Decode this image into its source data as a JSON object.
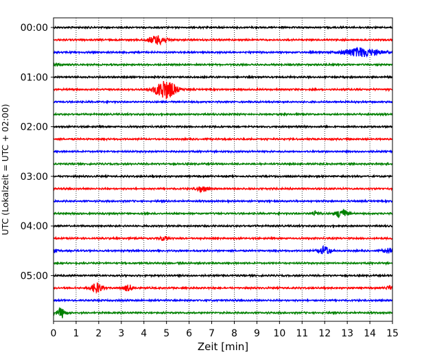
{
  "chart_data": {
    "type": "line",
    "xlabel": "Zeit  [min]",
    "ylabel": "UTC (Lokalzeit = UTC + 02:00)",
    "xlim": [
      0,
      15
    ],
    "x_ticks": [
      "0",
      "1",
      "2",
      "3",
      "4",
      "5",
      "6",
      "7",
      "8",
      "9",
      "10",
      "11",
      "12",
      "13",
      "14",
      "15"
    ],
    "y_ticks": [
      "00:00",
      "01:00",
      "02:00",
      "03:00",
      "04:00",
      "05:00"
    ],
    "grid": "vertical-dotted",
    "legend": "none",
    "trace_minutes_per_line": 15,
    "trace_count": 24,
    "trace_colors": [
      "#000000",
      "#ff0000",
      "#0000ff",
      "#008000"
    ],
    "events": [
      {
        "trace": 1,
        "t": 4.6,
        "amp": 1.3,
        "dur": 0.4
      },
      {
        "trace": 2,
        "t": 13.6,
        "amp": 1.3,
        "dur": 0.8
      },
      {
        "trace": 3,
        "t": 0.05,
        "amp": 0.5,
        "dur": 0.2
      },
      {
        "trace": 5,
        "t": 4.95,
        "amp": 2.8,
        "dur": 0.45
      },
      {
        "trace": 13,
        "t": 6.6,
        "amp": 0.9,
        "dur": 0.25
      },
      {
        "trace": 15,
        "t": 11.6,
        "amp": 0.6,
        "dur": 0.2
      },
      {
        "trace": 15,
        "t": 12.75,
        "amp": 1.4,
        "dur": 0.25
      },
      {
        "trace": 17,
        "t": 4.9,
        "amp": 0.6,
        "dur": 0.2
      },
      {
        "trace": 18,
        "t": 0.1,
        "amp": 0.7,
        "dur": 0.1
      },
      {
        "trace": 18,
        "t": 12.0,
        "amp": 1.3,
        "dur": 0.25
      },
      {
        "trace": 18,
        "t": 14.8,
        "amp": 0.8,
        "dur": 0.2
      },
      {
        "trace": 21,
        "t": 1.9,
        "amp": 1.4,
        "dur": 0.25
      },
      {
        "trace": 21,
        "t": 3.3,
        "amp": 0.8,
        "dur": 0.25
      },
      {
        "trace": 21,
        "t": 14.9,
        "amp": 0.6,
        "dur": 0.15
      },
      {
        "trace": 23,
        "t": 0.35,
        "amp": 1.4,
        "dur": 0.2
      }
    ]
  }
}
